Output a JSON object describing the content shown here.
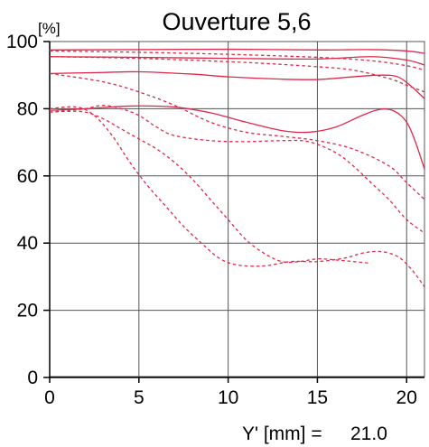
{
  "chart_data": {
    "type": "line",
    "title": "Ouverture 5,6",
    "ylabel": "[%]",
    "xlabel": "",
    "footer_label": "Y' [mm] =",
    "footer_value": "21.0",
    "xlim": [
      0,
      21
    ],
    "ylim": [
      0,
      100
    ],
    "x_ticks": [
      0,
      5,
      10,
      15,
      20
    ],
    "y_ticks": [
      0,
      20,
      40,
      60,
      80,
      100
    ],
    "grid": true,
    "line_color": "#e0284a",
    "series": [
      {
        "style": "solid",
        "points": [
          [
            0,
            97.5
          ],
          [
            5,
            97.6
          ],
          [
            10,
            97.7
          ],
          [
            15,
            97.5
          ],
          [
            18,
            97.6
          ],
          [
            20,
            97.2
          ],
          [
            21,
            96.5
          ]
        ]
      },
      {
        "style": "dashed",
        "points": [
          [
            0,
            97.2
          ],
          [
            5,
            96.8
          ],
          [
            10,
            96.2
          ],
          [
            15,
            95.3
          ],
          [
            18,
            94.3
          ],
          [
            20,
            92.8
          ],
          [
            21,
            91.5
          ]
        ]
      },
      {
        "style": "solid",
        "points": [
          [
            0,
            95.5
          ],
          [
            5,
            95.3
          ],
          [
            10,
            95
          ],
          [
            15,
            94.8
          ],
          [
            18,
            95.5
          ],
          [
            20,
            94.5
          ],
          [
            21,
            93
          ]
        ]
      },
      {
        "style": "dashed",
        "points": [
          [
            0,
            95.5
          ],
          [
            5,
            95
          ],
          [
            10,
            94
          ],
          [
            12,
            93.5
          ],
          [
            15,
            92.5
          ],
          [
            17,
            91.5
          ],
          [
            19,
            89
          ],
          [
            20,
            87
          ],
          [
            21,
            85
          ]
        ]
      },
      {
        "style": "solid",
        "points": [
          [
            0,
            90.5
          ],
          [
            3,
            90.8
          ],
          [
            5,
            91
          ],
          [
            8,
            90.3
          ],
          [
            10,
            89.5
          ],
          [
            13,
            88.8
          ],
          [
            15,
            88.7
          ],
          [
            17,
            89.5
          ],
          [
            18.5,
            90
          ],
          [
            19.5,
            89.5
          ],
          [
            20.3,
            86.5
          ],
          [
            21,
            83
          ]
        ]
      },
      {
        "style": "dashed",
        "points": [
          [
            0,
            90.5
          ],
          [
            3,
            88
          ],
          [
            5,
            85
          ],
          [
            7,
            81
          ],
          [
            9,
            76
          ],
          [
            11,
            73
          ],
          [
            13,
            71.8
          ],
          [
            15,
            70.5
          ],
          [
            17,
            68
          ],
          [
            19,
            63
          ],
          [
            20,
            58
          ],
          [
            21,
            53
          ]
        ]
      },
      {
        "style": "solid",
        "points": [
          [
            0,
            79.5
          ],
          [
            2,
            80
          ],
          [
            4.5,
            80.8
          ],
          [
            7,
            80.5
          ],
          [
            9,
            78.8
          ],
          [
            11,
            76
          ],
          [
            13,
            73.5
          ],
          [
            14.5,
            73
          ],
          [
            16,
            74.5
          ],
          [
            17.5,
            78
          ],
          [
            18.5,
            79.8
          ],
          [
            19.3,
            79.3
          ],
          [
            20,
            76
          ],
          [
            20.5,
            70
          ],
          [
            21,
            62
          ]
        ]
      },
      {
        "style": "dashed",
        "points": [
          [
            0,
            79
          ],
          [
            1,
            79.2
          ],
          [
            2,
            79
          ],
          [
            3,
            77
          ],
          [
            4,
            74
          ],
          [
            5,
            71
          ],
          [
            6,
            68
          ],
          [
            7,
            64
          ],
          [
            8,
            59
          ],
          [
            9,
            53
          ],
          [
            10,
            47
          ],
          [
            11,
            41
          ],
          [
            12,
            37
          ],
          [
            13,
            34.5
          ],
          [
            14,
            34.5
          ],
          [
            15,
            35.3
          ],
          [
            16,
            35
          ],
          [
            17,
            34.5
          ],
          [
            18,
            34
          ]
        ]
      },
      {
        "style": "dashed",
        "points": [
          [
            0,
            80
          ],
          [
            1.5,
            80.5
          ],
          [
            2.5,
            78
          ],
          [
            3.5,
            72
          ],
          [
            4.5,
            64
          ],
          [
            5.5,
            57
          ],
          [
            6.5,
            51
          ],
          [
            7.5,
            45
          ],
          [
            8.5,
            40
          ],
          [
            9.5,
            35.5
          ],
          [
            10.5,
            33.5
          ],
          [
            12,
            33.2
          ],
          [
            13.5,
            34.5
          ],
          [
            15,
            34.5
          ],
          [
            16.5,
            35.5
          ],
          [
            17.5,
            37
          ],
          [
            18.5,
            37.5
          ],
          [
            19.5,
            36
          ],
          [
            20.3,
            32
          ],
          [
            21,
            27
          ]
        ]
      },
      {
        "style": "dashed",
        "points": [
          [
            0,
            79
          ],
          [
            1,
            79.5
          ],
          [
            2,
            80
          ],
          [
            3,
            81
          ],
          [
            4,
            80
          ],
          [
            5,
            78
          ],
          [
            6,
            74.5
          ],
          [
            7,
            72
          ],
          [
            9,
            70.5
          ],
          [
            11,
            70.2
          ],
          [
            13,
            70.5
          ],
          [
            14.5,
            70.2
          ],
          [
            16,
            67
          ],
          [
            17,
            63
          ],
          [
            18,
            58
          ],
          [
            19,
            53
          ],
          [
            20,
            47
          ],
          [
            21,
            43
          ]
        ]
      }
    ]
  }
}
